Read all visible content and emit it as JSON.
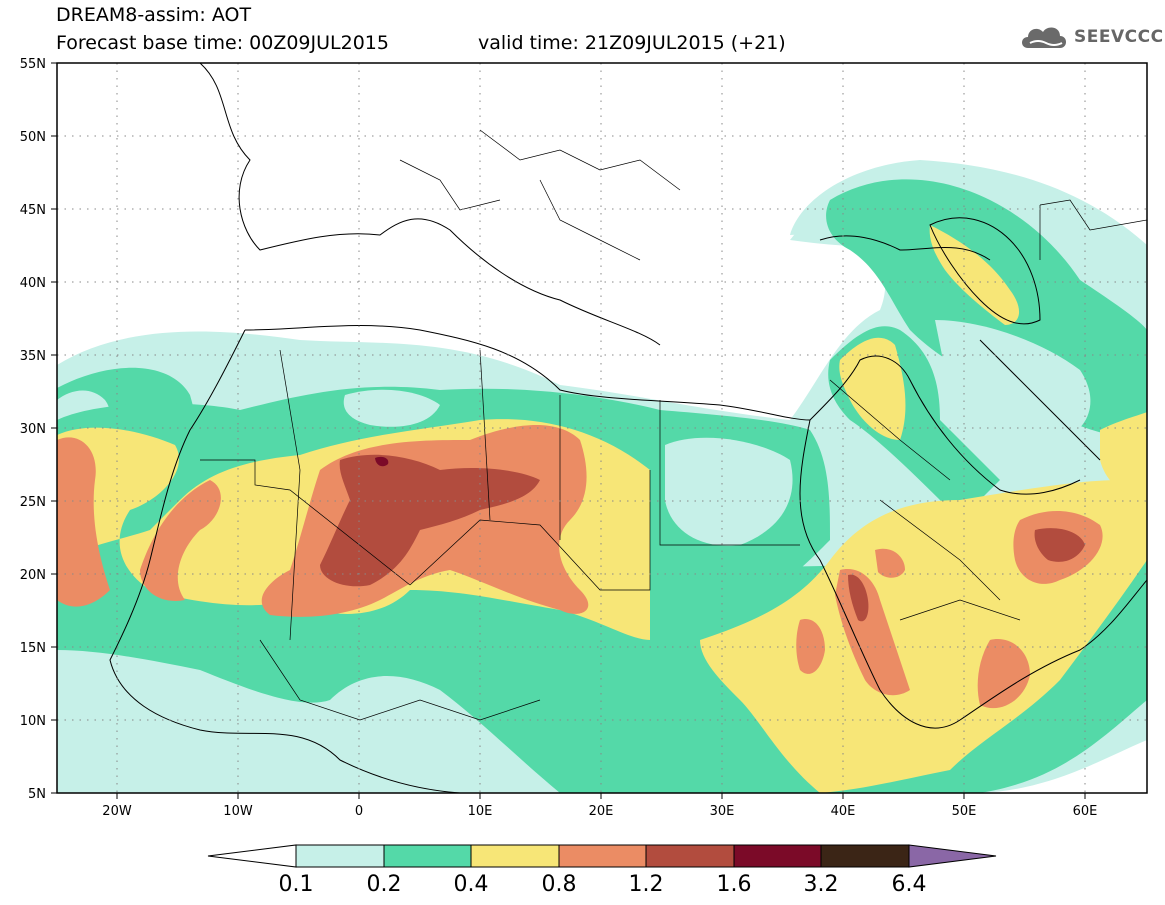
{
  "title": {
    "line1": "DREAM8-assim: AOT",
    "base_time": "Forecast base time: 00Z09JUL2015",
    "valid_time": "valid time: 21Z09JUL2015 (+21)"
  },
  "logo": {
    "text": "SEEVCCC",
    "icon": "cloud-icon"
  },
  "axes": {
    "lat_labels": [
      "55N",
      "50N",
      "45N",
      "40N",
      "35N",
      "30N",
      "25N",
      "20N",
      "15N",
      "10N",
      "5N"
    ],
    "lon_labels": [
      "20W",
      "10W",
      "0",
      "10E",
      "20E",
      "30E",
      "40E",
      "50E",
      "60E"
    ]
  },
  "colorbar": {
    "labels": [
      "0.1",
      "0.2",
      "0.4",
      "0.8",
      "1.2",
      "1.6",
      "3.2",
      "6.4"
    ],
    "colors": [
      "#ffffff",
      "#c6f0e8",
      "#54d9a8",
      "#f7e677",
      "#eb8c64",
      "#b24c3e",
      "#7b0a28",
      "#3b2516",
      "#8a67a6"
    ]
  },
  "map_colors": {
    "level_01": "#c6f0e8",
    "level_02": "#54d9a8",
    "level_04": "#f7e677",
    "level_08": "#eb8c64",
    "level_12": "#b24c3e",
    "level_16": "#7b0a28"
  }
}
